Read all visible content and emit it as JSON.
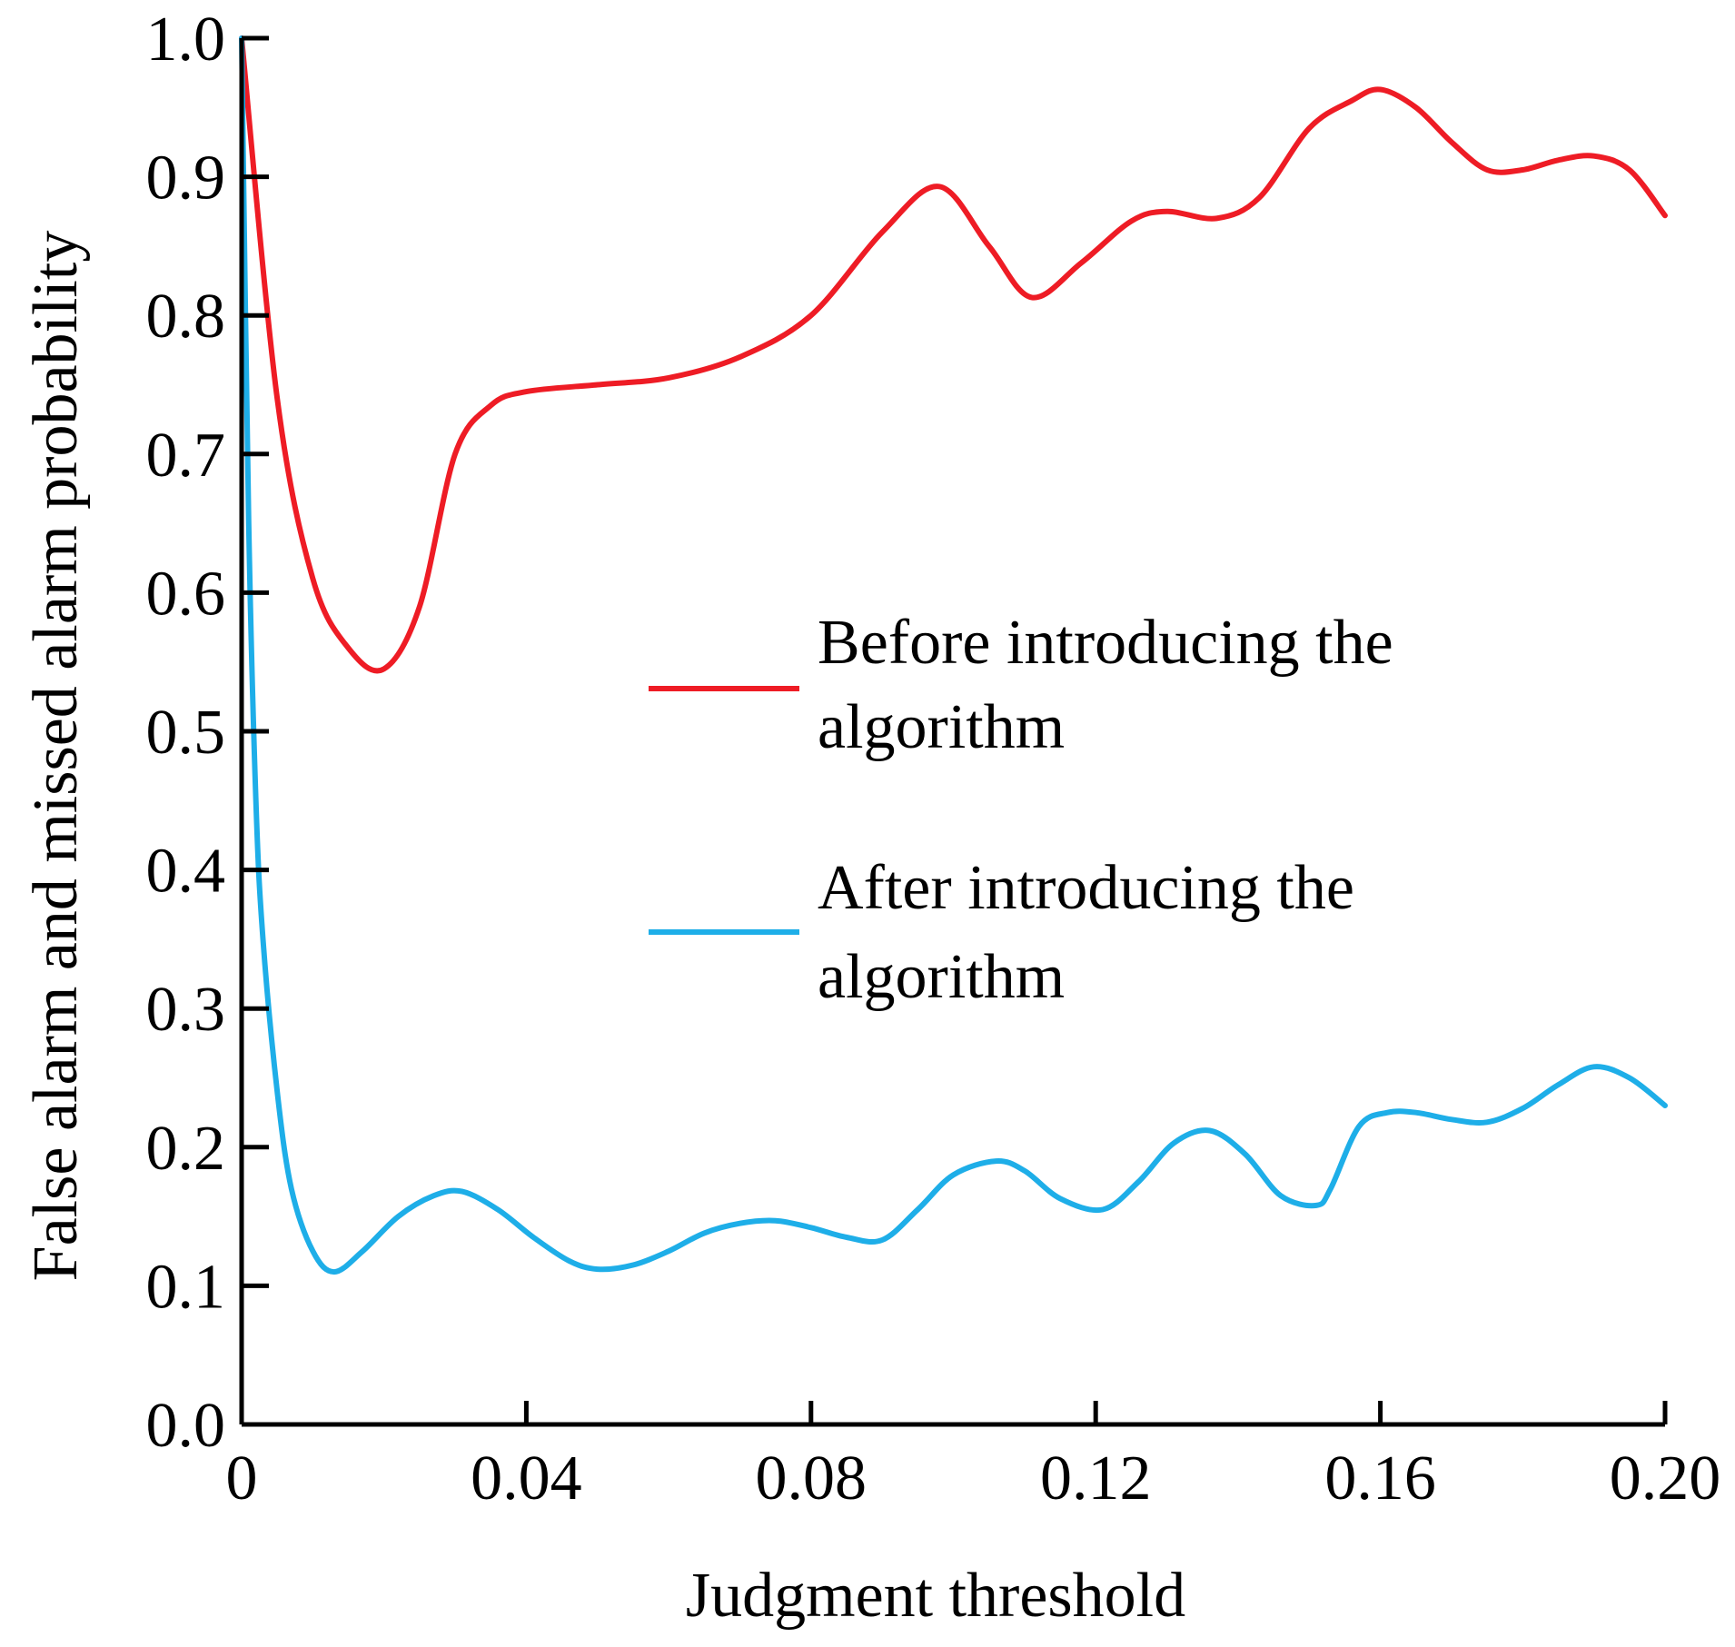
{
  "chart_data": {
    "type": "line",
    "title": "",
    "xlabel": "Judgment threshold",
    "ylabel": "False alarm and missed alarm probability",
    "xlim": [
      0,
      0.2
    ],
    "ylim": [
      0.0,
      1.0
    ],
    "x_ticks": [
      0,
      0.04,
      0.08,
      0.12,
      0.16,
      0.2
    ],
    "x_tick_labels": [
      "0",
      "0.04",
      "0.08",
      "0.12",
      "0.16",
      "0.20"
    ],
    "y_ticks": [
      0.0,
      0.1,
      0.2,
      0.3,
      0.4,
      0.5,
      0.6,
      0.7,
      0.8,
      0.9,
      1.0
    ],
    "y_tick_labels": [
      "0.0",
      "0.1",
      "0.2",
      "0.3",
      "0.4",
      "0.5",
      "0.6",
      "0.7",
      "0.8",
      "0.9",
      "1.0"
    ],
    "grid": false,
    "legend_position": "center-right",
    "series": [
      {
        "name": "Before introducing the algorithm",
        "legend_lines": [
          "Before introducing the",
          "algorithm"
        ],
        "color": "#ee1c25",
        "x": [
          0,
          0.005,
          0.01,
          0.015,
          0.02,
          0.025,
          0.03,
          0.035,
          0.04,
          0.05,
          0.06,
          0.07,
          0.08,
          0.09,
          0.098,
          0.105,
          0.111,
          0.118,
          0.125,
          0.13,
          0.137,
          0.143,
          0.15,
          0.156,
          0.16,
          0.165,
          0.17,
          0.175,
          0.18,
          0.185,
          0.19,
          0.195,
          0.2
        ],
        "values": [
          1.0,
          0.74,
          0.61,
          0.56,
          0.545,
          0.59,
          0.7,
          0.735,
          0.745,
          0.75,
          0.755,
          0.77,
          0.8,
          0.86,
          0.893,
          0.85,
          0.813,
          0.838,
          0.868,
          0.875,
          0.87,
          0.885,
          0.935,
          0.955,
          0.963,
          0.95,
          0.925,
          0.905,
          0.905,
          0.912,
          0.915,
          0.905,
          0.872
        ]
      },
      {
        "name": "After introducing the algorithm",
        "legend_lines": [
          "After introducing the",
          "algorithm"
        ],
        "color": "#1eaee8",
        "x": [
          0,
          0.001,
          0.002,
          0.003,
          0.005,
          0.007,
          0.01,
          0.013,
          0.017,
          0.022,
          0.027,
          0.031,
          0.036,
          0.041,
          0.046,
          0.05,
          0.055,
          0.06,
          0.065,
          0.07,
          0.075,
          0.08,
          0.085,
          0.09,
          0.095,
          0.1,
          0.106,
          0.11,
          0.115,
          0.121,
          0.126,
          0.131,
          0.136,
          0.141,
          0.146,
          0.151,
          0.153,
          0.157,
          0.161,
          0.165,
          0.17,
          0.175,
          0.18,
          0.185,
          0.19,
          0.195,
          0.2
        ],
        "values": [
          1.0,
          0.65,
          0.45,
          0.35,
          0.24,
          0.17,
          0.125,
          0.11,
          0.125,
          0.15,
          0.165,
          0.168,
          0.155,
          0.135,
          0.118,
          0.112,
          0.115,
          0.125,
          0.138,
          0.145,
          0.147,
          0.142,
          0.135,
          0.133,
          0.155,
          0.18,
          0.19,
          0.183,
          0.163,
          0.155,
          0.175,
          0.203,
          0.212,
          0.195,
          0.165,
          0.158,
          0.17,
          0.215,
          0.225,
          0.225,
          0.22,
          0.218,
          0.228,
          0.245,
          0.258,
          0.25,
          0.23
        ]
      }
    ]
  }
}
